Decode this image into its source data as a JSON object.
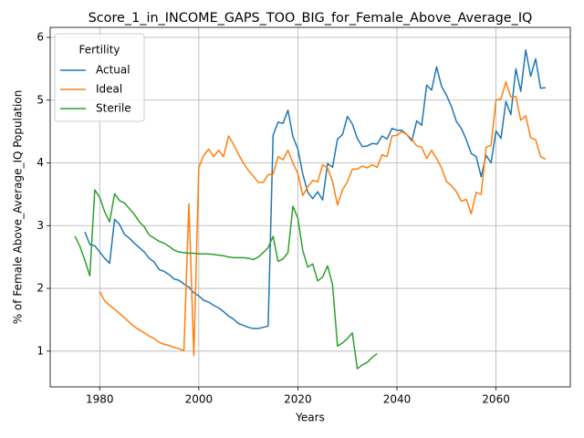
{
  "chart_data": {
    "type": "line",
    "title": "Score_1_in_INCOME_GAPS_TOO_BIG_for_Female_Above_Average_IQ",
    "x_label": "Years",
    "y_label": "% of Female Above_Average_IQ Population",
    "legend_title": "Fertility",
    "legend": "upper left",
    "grid": true,
    "xlim": [
      1970,
      2075
    ],
    "xticks": [
      1980,
      2000,
      2020,
      2040,
      2060
    ],
    "ylim": [
      0.43,
      6.16
    ],
    "yticks": [
      1,
      2,
      3,
      4,
      5,
      6
    ],
    "x": [
      1975,
      1976,
      1977,
      1978,
      1979,
      1980,
      1981,
      1982,
      1983,
      1984,
      1985,
      1986,
      1987,
      1988,
      1989,
      1990,
      1991,
      1992,
      1993,
      1994,
      1995,
      1996,
      1997,
      1998,
      1999,
      2000,
      2001,
      2002,
      2003,
      2004,
      2005,
      2006,
      2007,
      2008,
      2009,
      2010,
      2011,
      2012,
      2013,
      2014,
      2015,
      2016,
      2017,
      2018,
      2019,
      2020,
      2021,
      2022,
      2023,
      2024,
      2025,
      2026,
      2027,
      2028,
      2029,
      2030,
      2031,
      2032,
      2033,
      2034,
      2035,
      2036,
      2037,
      2038,
      2039,
      2040,
      2041,
      2042,
      2043,
      2044,
      2045,
      2046,
      2047,
      2048,
      2049,
      2050,
      2051,
      2052,
      2053,
      2054,
      2055,
      2056,
      2057,
      2058,
      2059,
      2060,
      2061,
      2062,
      2063,
      2064,
      2065,
      2066,
      2067,
      2068,
      2069,
      2070
    ],
    "series": [
      {
        "name": "Actual",
        "color": "#1f77b4",
        "values": [
          null,
          null,
          2.9,
          2.7,
          2.68,
          2.58,
          2.48,
          2.4,
          3.1,
          3.02,
          2.86,
          2.8,
          2.72,
          2.65,
          2.58,
          2.48,
          2.42,
          2.3,
          2.27,
          2.22,
          2.15,
          2.13,
          2.07,
          2.02,
          1.93,
          1.88,
          1.81,
          1.78,
          1.73,
          1.69,
          1.63,
          1.56,
          1.51,
          1.44,
          1.41,
          1.38,
          1.36,
          1.36,
          1.38,
          1.4,
          4.44,
          4.65,
          4.63,
          4.84,
          4.42,
          4.22,
          3.82,
          3.53,
          3.43,
          3.54,
          3.41,
          3.99,
          3.93,
          4.38,
          4.45,
          4.74,
          4.62,
          4.39,
          4.26,
          4.27,
          4.31,
          4.3,
          4.43,
          4.38,
          4.55,
          4.52,
          4.52,
          4.45,
          4.35,
          4.67,
          4.6,
          5.24,
          5.16,
          5.53,
          5.22,
          5.08,
          4.9,
          4.66,
          4.55,
          4.37,
          4.15,
          4.1,
          3.78,
          4.12,
          4.0,
          4.51,
          4.39,
          4.98,
          4.77,
          5.5,
          5.14,
          5.8,
          5.38,
          5.66,
          5.19,
          5.2
        ]
      },
      {
        "name": "Ideal",
        "color": "#ff7f0e",
        "values": [
          null,
          null,
          null,
          null,
          null,
          1.95,
          1.8,
          1.73,
          1.67,
          1.6,
          1.53,
          1.46,
          1.39,
          1.34,
          1.29,
          1.24,
          1.2,
          1.14,
          1.11,
          1.09,
          1.06,
          1.04,
          1.01,
          3.35,
          0.93,
          3.93,
          4.12,
          4.22,
          4.1,
          4.2,
          4.1,
          4.43,
          4.3,
          4.14,
          4.0,
          3.88,
          3.79,
          3.69,
          3.69,
          3.81,
          3.82,
          4.1,
          4.05,
          4.2,
          4.0,
          3.83,
          3.48,
          3.62,
          3.72,
          3.7,
          3.97,
          3.92,
          3.7,
          3.33,
          3.57,
          3.7,
          3.9,
          3.9,
          3.95,
          3.92,
          3.97,
          3.93,
          4.13,
          4.1,
          4.43,
          4.44,
          4.5,
          4.45,
          4.38,
          4.27,
          4.25,
          4.07,
          4.2,
          4.07,
          3.92,
          3.7,
          3.64,
          3.54,
          3.39,
          3.42,
          3.19,
          3.53,
          3.5,
          4.25,
          4.28,
          5.0,
          5.02,
          5.29,
          5.05,
          5.06,
          4.68,
          4.75,
          4.4,
          4.37,
          4.1,
          4.06
        ]
      },
      {
        "name": "Sterile",
        "color": "#2ca02c",
        "values": [
          2.83,
          2.67,
          2.45,
          2.2,
          3.57,
          3.45,
          3.22,
          3.06,
          3.51,
          3.4,
          3.36,
          3.27,
          3.18,
          3.06,
          2.98,
          2.85,
          2.8,
          2.75,
          2.72,
          2.67,
          2.61,
          2.58,
          2.57,
          2.56,
          2.56,
          2.55,
          2.55,
          2.55,
          2.54,
          2.53,
          2.52,
          2.5,
          2.49,
          2.49,
          2.49,
          2.48,
          2.46,
          2.5,
          2.57,
          2.65,
          2.83,
          2.43,
          2.47,
          2.57,
          3.31,
          3.12,
          2.6,
          2.34,
          2.39,
          2.12,
          2.18,
          2.36,
          2.06,
          1.08,
          1.13,
          1.2,
          1.29,
          0.72,
          0.78,
          0.82,
          0.9,
          0.96,
          null,
          null,
          null,
          null,
          null,
          null,
          null,
          null,
          null,
          null,
          null,
          null,
          null,
          null,
          null,
          null,
          null,
          null,
          null,
          null,
          null,
          null,
          null,
          null,
          null,
          null,
          null,
          null,
          null,
          null,
          null,
          null,
          null,
          null
        ]
      }
    ]
  }
}
